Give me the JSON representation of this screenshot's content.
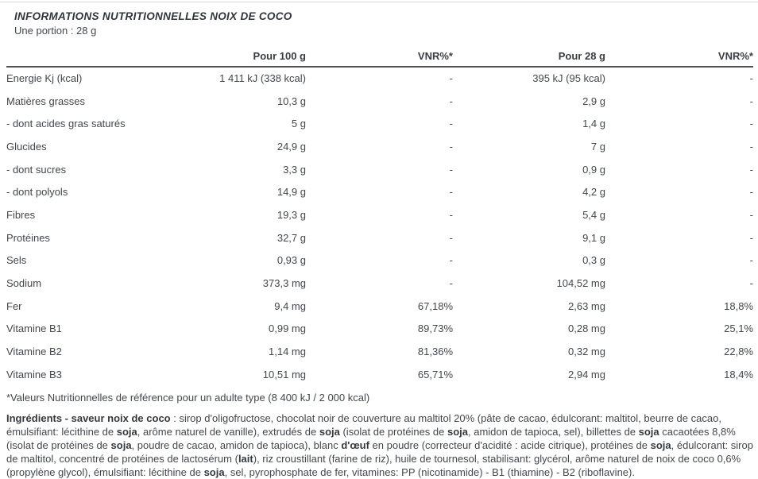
{
  "header": {
    "title": "INFORMATIONS NUTRITIONNELLES NOIX DE COCO",
    "portion": "Une portion : 28 g"
  },
  "table": {
    "columns": [
      "",
      "Pour 100 g",
      "VNR%*",
      "Pour 28 g",
      "VNR%*"
    ],
    "rows": [
      {
        "label": "Energie Kj (kcal)",
        "per100": "1 411 kJ (338 kcal)",
        "vnr100": "-",
        "per28": "395 kJ (95 kcal)",
        "vnr28": "-"
      },
      {
        "label": "Matières grasses",
        "per100": "10,3 g",
        "vnr100": "-",
        "per28": "2,9 g",
        "vnr28": "-"
      },
      {
        "label": "- dont acides gras saturés",
        "per100": "5 g",
        "vnr100": "-",
        "per28": "1,4 g",
        "vnr28": "-"
      },
      {
        "label": "Glucides",
        "per100": "24,9 g",
        "vnr100": "-",
        "per28": "7 g",
        "vnr28": "-"
      },
      {
        "label": "- dont sucres",
        "per100": "3,3 g",
        "vnr100": "-",
        "per28": "0,9 g",
        "vnr28": "-"
      },
      {
        "label": "- dont polyols",
        "per100": "14,9 g",
        "vnr100": "-",
        "per28": "4,2 g",
        "vnr28": "-"
      },
      {
        "label": "Fibres",
        "per100": "19,3 g",
        "vnr100": "-",
        "per28": "5,4 g",
        "vnr28": "-"
      },
      {
        "label": "Protéines",
        "per100": "32,7 g",
        "vnr100": "-",
        "per28": "9,1 g",
        "vnr28": "-"
      },
      {
        "label": "Sels",
        "per100": "0,93 g",
        "vnr100": "-",
        "per28": "0,3 g",
        "vnr28": "-"
      },
      {
        "label": "Sodium",
        "per100": "373,3 mg",
        "vnr100": "-",
        "per28": "104,52 mg",
        "vnr28": "-"
      },
      {
        "label": "Fer",
        "per100": "9,4 mg",
        "vnr100": "67,18%",
        "per28": "2,63 mg",
        "vnr28": "18,8%"
      },
      {
        "label": "Vitamine B1",
        "per100": "0,99 mg",
        "vnr100": "89,73%",
        "per28": "0,28 mg",
        "vnr28": "25,1%"
      },
      {
        "label": "Vitamine B2",
        "per100": "1,14 mg",
        "vnr100": "81,36%",
        "per28": "0,32 mg",
        "vnr28": "22,8%"
      },
      {
        "label": "Vitamine B3",
        "per100": "10,51 mg",
        "vnr100": "65,71%",
        "per28": "2,94 mg",
        "vnr28": "18,4%"
      }
    ]
  },
  "footnote": "*Valeurs Nutritionnelles de référence pour un adulte type (8 400 kJ / 2 000 kcal)",
  "ingredients": {
    "segments": [
      {
        "t": "Ingrédients - saveur noix de coco",
        "b": true
      },
      {
        "t": " : sirop d'oligofructose, chocolat noir de couverture au maltitol 20% (pâte de cacao, édulcorant: maltitol, beurre de cacao, émulsifiant: lécithine de ",
        "b": false
      },
      {
        "t": "soja",
        "b": true
      },
      {
        "t": ", arôme naturel de vanille), extrudés de ",
        "b": false
      },
      {
        "t": "soja",
        "b": true
      },
      {
        "t": " (isolat de protéines de ",
        "b": false
      },
      {
        "t": "soja",
        "b": true
      },
      {
        "t": ", amidon de tapioca, sel), billettes de ",
        "b": false
      },
      {
        "t": "soja",
        "b": true
      },
      {
        "t": " cacaotées 8,8% (isolat de protéines de ",
        "b": false
      },
      {
        "t": "soja",
        "b": true
      },
      {
        "t": ", poudre de cacao, amidon de tapioca), blanc ",
        "b": false
      },
      {
        "t": "d'œuf",
        "b": true
      },
      {
        "t": " en poudre (correcteur d'acidité : acide citrique), protéines de ",
        "b": false
      },
      {
        "t": "soja",
        "b": true
      },
      {
        "t": ", édulcorant: sirop de maltitol, concentré de protéines de lactosérum (",
        "b": false
      },
      {
        "t": "lait",
        "b": true
      },
      {
        "t": "), riz croustillant (farine de riz), huile de tournesol, stabilisant: glycérol, arôme naturel de noix de coco 0,6% (propylène glycol), émulsifiant: lécithine de ",
        "b": false
      },
      {
        "t": "soja",
        "b": true
      },
      {
        "t": ", sel, pyrophosphate de fer, vitamines: PP (nicotinamide) - B1 (thiamine) - B2 (riboflavine).",
        "b": false
      }
    ]
  }
}
